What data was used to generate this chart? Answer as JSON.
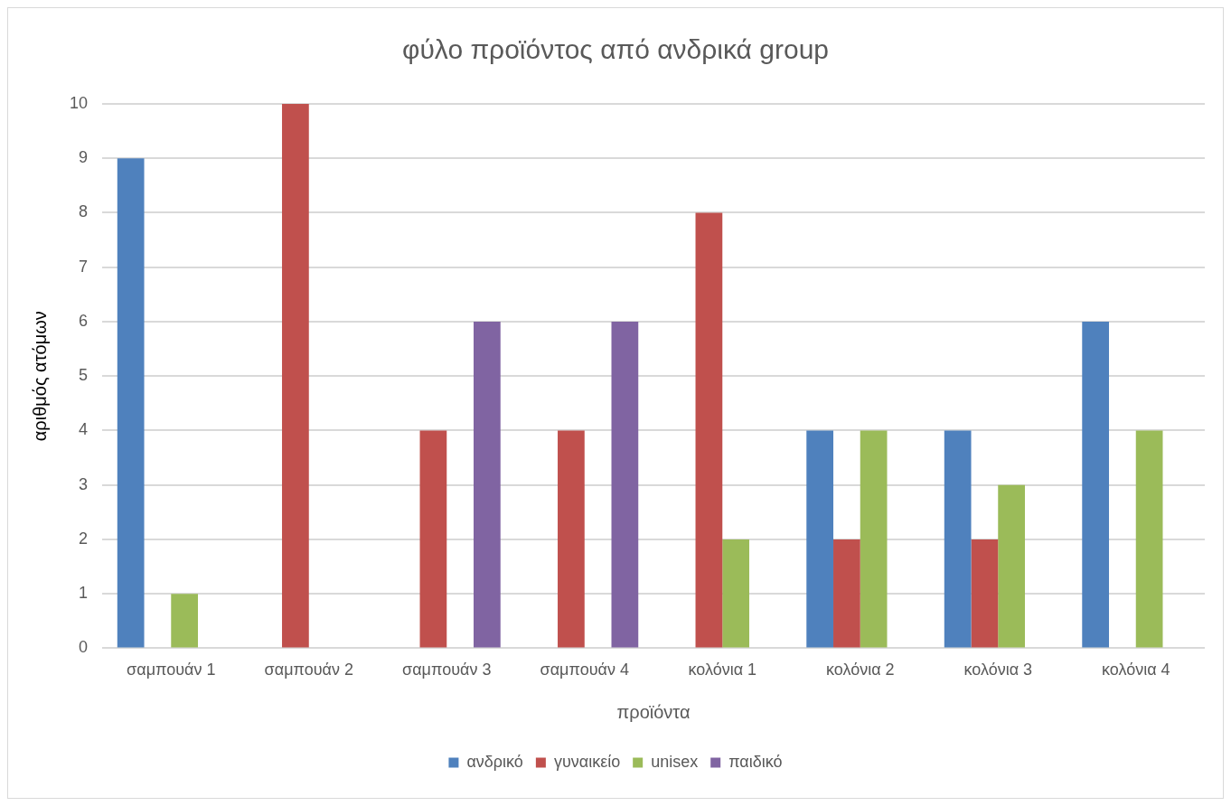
{
  "chart_data": {
    "type": "bar",
    "title": "φύλο προϊόντος από ανδρικά group",
    "xlabel": "προϊόντα",
    "ylabel": "αριθμός ατόμων",
    "categories": [
      "σαμπουάν 1",
      "σαμπουάν 2",
      "σαμπουάν 3",
      "σαμπουάν 4",
      "κολόνια 1",
      "κολόνια 2",
      "κολόνια 3",
      "κολόνια 4"
    ],
    "series": [
      {
        "name": "ανδρικό",
        "color": "#4f81bd",
        "values": [
          9,
          0,
          0,
          0,
          0,
          4,
          4,
          6
        ]
      },
      {
        "name": "γυναικείο",
        "color": "#c0504d",
        "values": [
          0,
          10,
          4,
          4,
          8,
          2,
          2,
          0
        ]
      },
      {
        "name": "unisex",
        "color": "#9bbb59",
        "values": [
          1,
          0,
          0,
          0,
          2,
          4,
          3,
          4
        ]
      },
      {
        "name": "παιδικό",
        "color": "#8064a2",
        "values": [
          0,
          0,
          6,
          6,
          0,
          0,
          0,
          0
        ]
      }
    ],
    "ylim": [
      0,
      10
    ],
    "yticks": [
      0,
      1,
      2,
      3,
      4,
      5,
      6,
      7,
      8,
      9,
      10
    ],
    "grid": "y",
    "legend": "bottom"
  }
}
